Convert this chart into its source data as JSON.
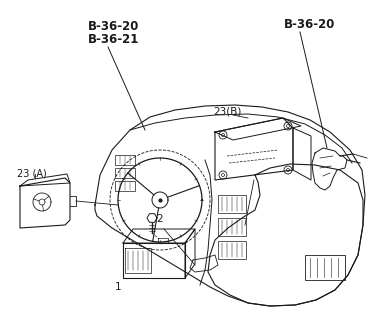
{
  "bg_color": "#ffffff",
  "line_color": "#1a1a1a",
  "label_b3620_1": "B-36-20",
  "label_b3621": "B-36-21",
  "label_b3620_2": "B-36-20",
  "label_23A": "23 (A)",
  "label_23B": "23(B)",
  "label_1": "1",
  "label_2": "2",
  "figsize": [
    3.69,
    3.2
  ],
  "dpi": 100
}
